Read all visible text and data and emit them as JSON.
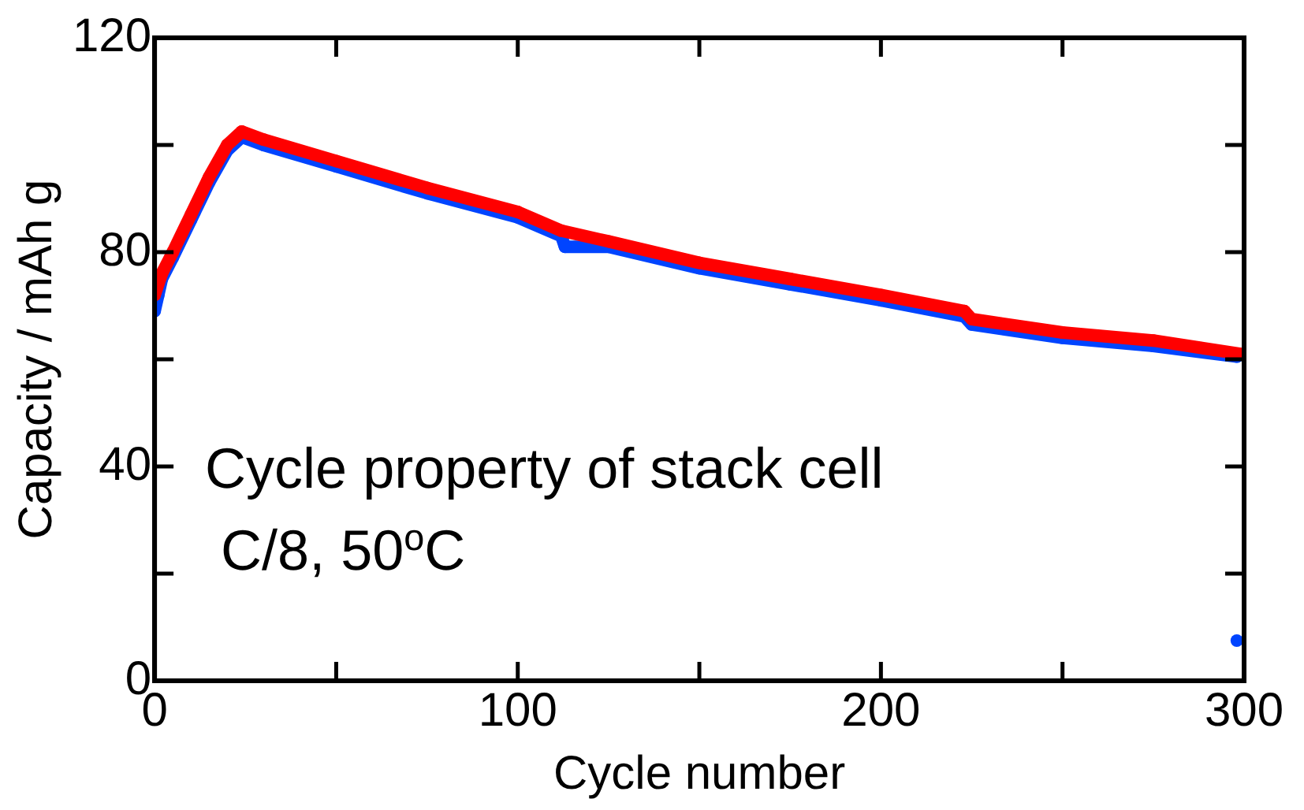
{
  "chart_data": {
    "type": "line",
    "xlabel": "Cycle number",
    "ylabel": "Capacity / mAh g",
    "xlim": [
      0,
      300
    ],
    "ylim": [
      0,
      120
    ],
    "xticks": [
      0,
      {
        "value": 50,
        "label": null
      },
      100,
      {
        "value": 150,
        "label": null
      },
      200,
      {
        "value": 250,
        "label": null
      },
      300
    ],
    "yticks": [
      0,
      {
        "value": 20,
        "label": null
      },
      40,
      {
        "value": 60,
        "label": null
      },
      80,
      {
        "value": 100,
        "label": null
      },
      120
    ],
    "grid": false,
    "legend": false,
    "marker": "circle",
    "line_style": "solid",
    "annotations": [
      "Cycle property of stack cell",
      "C/8, 50$^{o}$C"
    ],
    "series": [
      {
        "color": "#ff0000",
        "x": [
          0,
          2,
          5,
          10,
          15,
          20,
          24,
          30,
          50,
          75,
          100,
          112,
          125,
          150,
          175,
          200,
          223,
          225,
          250,
          275,
          299
        ],
        "values": [
          72,
          76,
          80,
          87,
          94,
          100,
          102.5,
          101,
          97,
          92,
          87.5,
          84,
          82,
          78,
          75,
          72,
          69,
          67.5,
          65,
          63.5,
          61
        ]
      },
      {
        "color": "#0044ff",
        "x": [
          0,
          1,
          2,
          5,
          10,
          15,
          20,
          24,
          30,
          50,
          75,
          100,
          112,
          113,
          125,
          150,
          175,
          200,
          223,
          225,
          250,
          275,
          298
        ],
        "values": [
          69,
          72,
          75,
          79,
          86,
          93,
          99,
          101.5,
          100,
          96,
          91,
          86.5,
          83,
          81,
          81,
          77,
          74,
          71,
          68,
          66.5,
          64,
          62.5,
          60.5
        ]
      },
      {
        "type": "scatter",
        "color": "#0044ff",
        "x": [
          298
        ],
        "values": [
          7.5
        ]
      }
    ]
  }
}
